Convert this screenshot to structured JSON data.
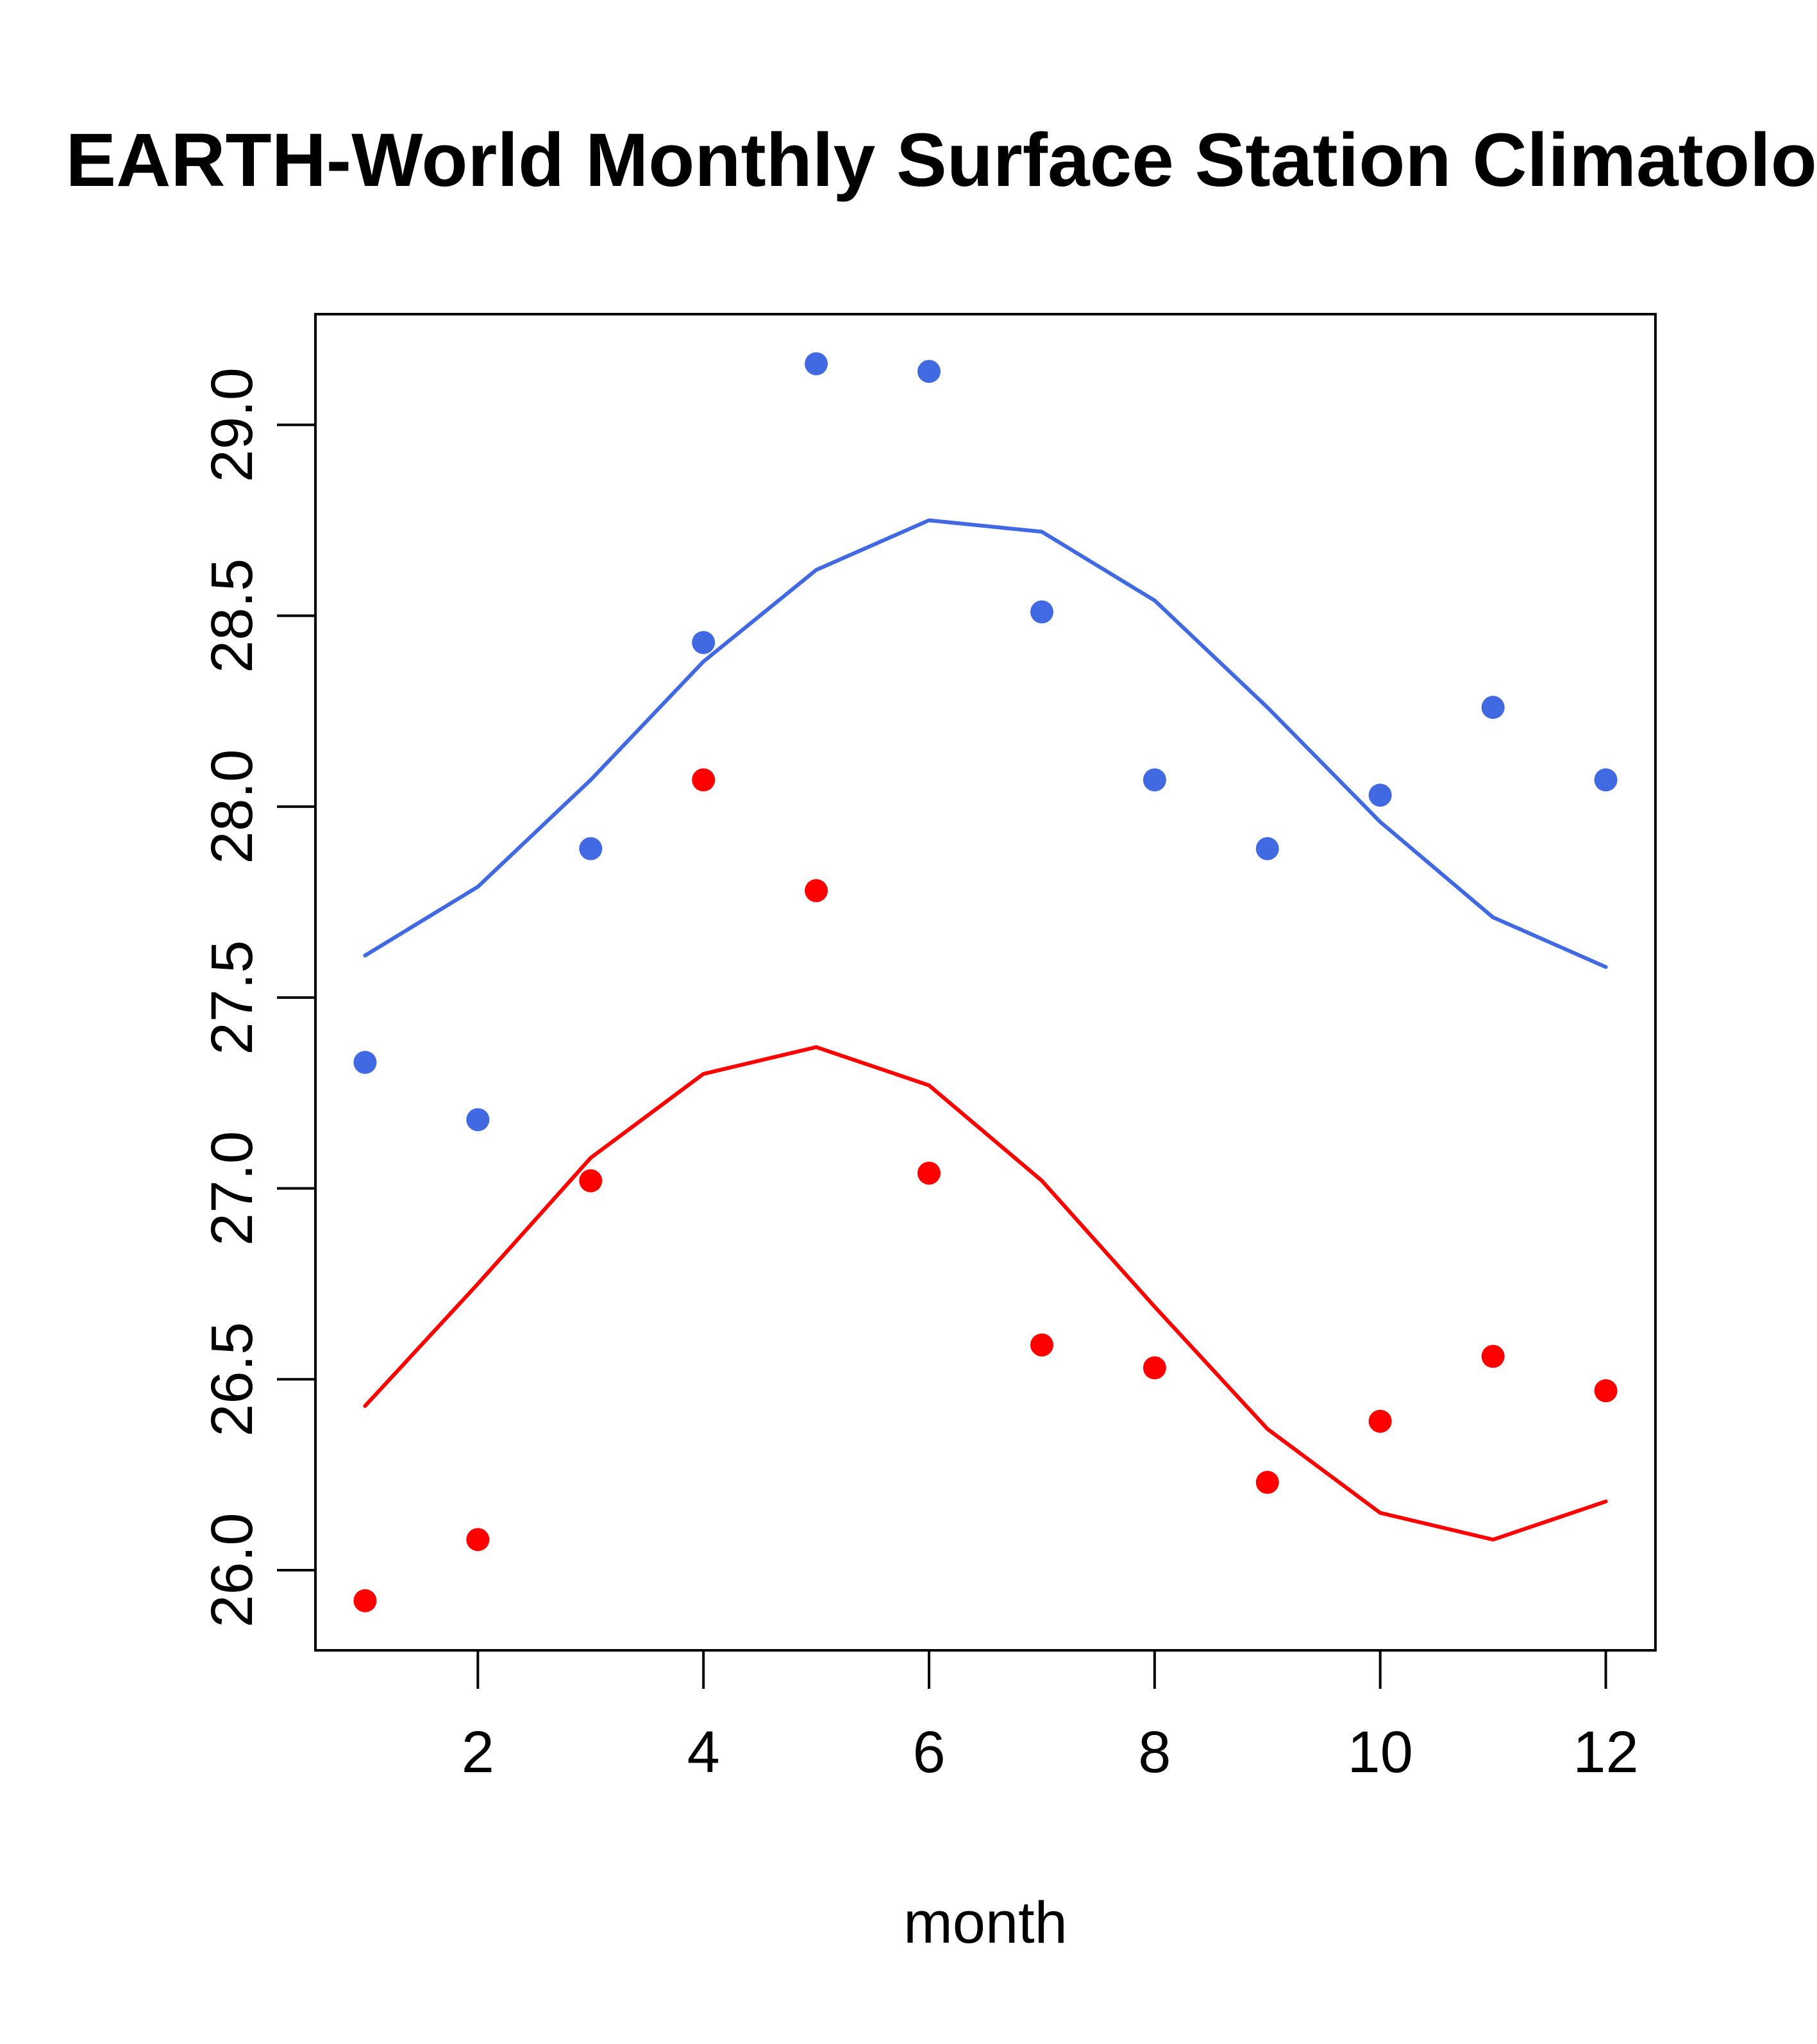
{
  "chart_data": {
    "type": "scatter",
    "title": "EARTH-World Monthly Surface Station Climatology",
    "xlabel": "month",
    "ylabel": "",
    "xlim": [
      0.56,
      12.44
    ],
    "ylim": [
      25.79,
      29.29
    ],
    "x_ticks": [
      2,
      4,
      6,
      8,
      10,
      12
    ],
    "x_tick_labels": [
      "2",
      "4",
      "6",
      "8",
      "10",
      "12"
    ],
    "y_ticks": [
      26.0,
      26.5,
      27.0,
      27.5,
      28.0,
      28.5,
      29.0
    ],
    "y_tick_labels": [
      "26.0",
      "26.5",
      "27.0",
      "27.5",
      "28.0",
      "28.5",
      "29.0"
    ],
    "grid": false,
    "legend": "none",
    "x": [
      1,
      2,
      3,
      4,
      5,
      6,
      7,
      8,
      9,
      10,
      11,
      12
    ],
    "series": [
      {
        "name": "blue-points",
        "kind": "points",
        "color": "#4169E1",
        "values": [
          27.33,
          27.18,
          27.89,
          28.43,
          29.16,
          29.14,
          28.51,
          28.07,
          27.89,
          28.03,
          28.26,
          28.07
        ]
      },
      {
        "name": "blue-line",
        "kind": "line",
        "color": "#4169E1",
        "values": [
          27.61,
          27.79,
          28.07,
          28.38,
          28.62,
          28.75,
          28.72,
          28.54,
          28.26,
          27.96,
          27.71,
          27.58
        ]
      },
      {
        "name": "red-points",
        "kind": "points",
        "color": "#FF0000",
        "values": [
          25.92,
          26.08,
          27.02,
          28.07,
          27.78,
          27.04,
          26.59,
          26.53,
          26.23,
          26.39,
          26.56,
          26.47
        ]
      },
      {
        "name": "red-line",
        "kind": "line",
        "color": "#FF0000",
        "values": [
          26.43,
          26.75,
          27.08,
          27.3,
          27.37,
          27.27,
          27.02,
          26.69,
          26.37,
          26.15,
          26.08,
          26.18
        ]
      }
    ]
  }
}
